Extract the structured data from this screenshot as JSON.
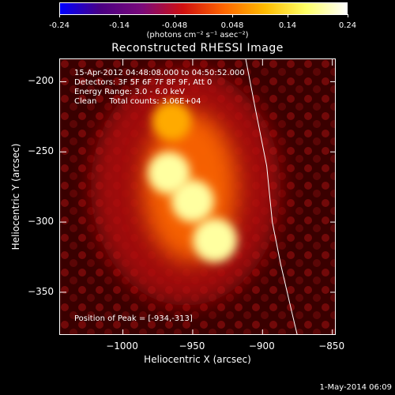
{
  "chart_data": {
    "type": "heatmap",
    "title": "Reconstructed RHESSI Image",
    "xlabel": "Heliocentric X (arcsec)",
    "ylabel": "Heliocentric Y (arcsec)",
    "xlim": [
      -1045,
      -847
    ],
    "ylim": [
      -381,
      -184
    ],
    "xticks": [
      -1000,
      -950,
      -900,
      -850
    ],
    "yticks": [
      -200,
      -250,
      -300,
      -350
    ],
    "xtick_labels": [
      "−1000",
      "−950",
      "−900",
      "−850"
    ],
    "ytick_labels": [
      "−200",
      "−250",
      "−300",
      "−350"
    ],
    "colorbar": {
      "range": [
        -0.24,
        0.24
      ],
      "tick_labels": [
        "-0.24",
        "-0.14",
        "-0.048",
        "0.048",
        "0.14",
        "0.24"
      ],
      "tick_values": [
        -0.24,
        -0.14,
        -0.048,
        0.048,
        0.14,
        0.24
      ],
      "units_label": "(photons cm⁻² s⁻¹ asec⁻²)"
    },
    "sources": [
      {
        "x": -934,
        "y": -313,
        "intensity": 0.24
      },
      {
        "x": -950,
        "y": -285,
        "intensity": 0.19
      },
      {
        "x": -967,
        "y": -265,
        "intensity": 0.18
      },
      {
        "x": -965,
        "y": -228,
        "intensity": 0.1
      }
    ],
    "limb_curve": [
      [
        -912,
        -184
      ],
      [
        -905,
        -220
      ],
      [
        -897,
        -260
      ],
      [
        -893,
        -300
      ],
      [
        -887,
        -330
      ],
      [
        -880,
        -360
      ],
      [
        -875,
        -381
      ]
    ],
    "info_lines": [
      "15-Apr-2012 04:48:08.000 to 04:50:52.000",
      "Detectors: 3F 5F 6F 7F 8F 9F, Att 0",
      "Energy Range: 3.0 - 6.0 keV",
      "Clean     Total counts: 3.06E+04"
    ],
    "peak_text": "Position of Peak = [-934,-313]",
    "colormap": [
      "#0000ff",
      "#4b0082",
      "#7a0a7a",
      "#d01010",
      "#ff6600",
      "#ffbb00",
      "#ffff66",
      "#ffffff"
    ]
  },
  "footer": "1-May-2014 06:09"
}
